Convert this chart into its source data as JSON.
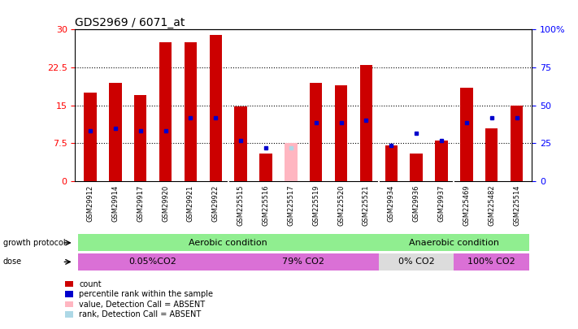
{
  "title": "GDS2969 / 6071_at",
  "samples": [
    "GSM29912",
    "GSM29914",
    "GSM29917",
    "GSM29920",
    "GSM29921",
    "GSM29922",
    "GSM225515",
    "GSM225516",
    "GSM225517",
    "GSM225519",
    "GSM225520",
    "GSM225521",
    "GSM29934",
    "GSM29936",
    "GSM29937",
    "GSM225469",
    "GSM225482",
    "GSM225514"
  ],
  "count_values": [
    17.5,
    19.5,
    17.0,
    27.5,
    27.5,
    29.0,
    14.8,
    5.5,
    7.5,
    19.5,
    19.0,
    23.0,
    7.0,
    5.5,
    8.0,
    18.5,
    10.5,
    15.0
  ],
  "rank_values": [
    10.0,
    10.5,
    10.0,
    10.0,
    12.5,
    12.5,
    8.0,
    6.5,
    null,
    11.5,
    11.5,
    12.0,
    7.0,
    9.5,
    8.0,
    11.5,
    12.5,
    12.5
  ],
  "absent_count": [
    null,
    null,
    null,
    null,
    null,
    null,
    null,
    null,
    7.5,
    null,
    null,
    null,
    null,
    null,
    null,
    null,
    null,
    null
  ],
  "absent_rank": [
    null,
    null,
    null,
    null,
    null,
    null,
    null,
    null,
    6.5,
    null,
    null,
    null,
    null,
    null,
    null,
    null,
    null,
    null
  ],
  "ylim_left": [
    0,
    30
  ],
  "yticks_left": [
    0,
    7.5,
    15,
    22.5,
    30
  ],
  "ytick_labels_left": [
    "0",
    "7.5",
    "15",
    "22.5",
    "30"
  ],
  "ylim_right": [
    0,
    100
  ],
  "yticks_right": [
    0,
    25,
    50,
    75,
    100
  ],
  "ytick_labels_right": [
    "0",
    "25",
    "50",
    "75",
    "100%"
  ],
  "growth_protocol_groups": [
    {
      "label": "Aerobic condition",
      "start": 0,
      "end": 11,
      "color": "#90EE90"
    },
    {
      "label": "Anaerobic condition",
      "start": 12,
      "end": 17,
      "color": "#90EE90"
    }
  ],
  "dose_groups": [
    {
      "label": "0.05%CO2",
      "start": 0,
      "end": 5,
      "color": "#DA70D6"
    },
    {
      "label": "79% CO2",
      "start": 6,
      "end": 11,
      "color": "#DA70D6"
    },
    {
      "label": "0% CO2",
      "start": 12,
      "end": 14,
      "color": "#DCDCDC"
    },
    {
      "label": "100% CO2",
      "start": 15,
      "end": 17,
      "color": "#DA70D6"
    }
  ],
  "bar_color": "#CC0000",
  "rank_color": "#0000CC",
  "absent_count_color": "#FFB6C1",
  "absent_rank_color": "#ADD8E6",
  "bar_width": 0.5,
  "xtick_bg": "#D3D3D3"
}
